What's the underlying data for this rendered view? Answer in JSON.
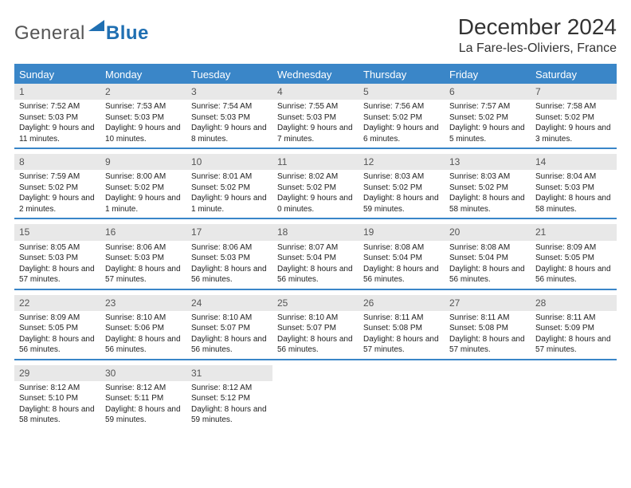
{
  "logo": {
    "general": "General",
    "blue": "Blue",
    "tri_color": "#1f6fb2"
  },
  "title": "December 2024",
  "location": "La Fare-les-Oliviers, France",
  "colors": {
    "header_bg": "#3a86c8",
    "daynum_bg": "#e8e8e8",
    "text": "#222222",
    "underline": "#3a86c8"
  },
  "typography": {
    "title_fontsize": 28,
    "location_fontsize": 16,
    "dow_fontsize": 13,
    "daynum_fontsize": 12,
    "body_fontsize": 10
  },
  "daysOfWeek": [
    "Sunday",
    "Monday",
    "Tuesday",
    "Wednesday",
    "Thursday",
    "Friday",
    "Saturday"
  ],
  "weeks": [
    [
      {
        "n": "1",
        "sunrise": "Sunrise: 7:52 AM",
        "sunset": "Sunset: 5:03 PM",
        "daylight": "Daylight: 9 hours and 11 minutes."
      },
      {
        "n": "2",
        "sunrise": "Sunrise: 7:53 AM",
        "sunset": "Sunset: 5:03 PM",
        "daylight": "Daylight: 9 hours and 10 minutes."
      },
      {
        "n": "3",
        "sunrise": "Sunrise: 7:54 AM",
        "sunset": "Sunset: 5:03 PM",
        "daylight": "Daylight: 9 hours and 8 minutes."
      },
      {
        "n": "4",
        "sunrise": "Sunrise: 7:55 AM",
        "sunset": "Sunset: 5:03 PM",
        "daylight": "Daylight: 9 hours and 7 minutes."
      },
      {
        "n": "5",
        "sunrise": "Sunrise: 7:56 AM",
        "sunset": "Sunset: 5:02 PM",
        "daylight": "Daylight: 9 hours and 6 minutes."
      },
      {
        "n": "6",
        "sunrise": "Sunrise: 7:57 AM",
        "sunset": "Sunset: 5:02 PM",
        "daylight": "Daylight: 9 hours and 5 minutes."
      },
      {
        "n": "7",
        "sunrise": "Sunrise: 7:58 AM",
        "sunset": "Sunset: 5:02 PM",
        "daylight": "Daylight: 9 hours and 3 minutes."
      }
    ],
    [
      {
        "n": "8",
        "sunrise": "Sunrise: 7:59 AM",
        "sunset": "Sunset: 5:02 PM",
        "daylight": "Daylight: 9 hours and 2 minutes."
      },
      {
        "n": "9",
        "sunrise": "Sunrise: 8:00 AM",
        "sunset": "Sunset: 5:02 PM",
        "daylight": "Daylight: 9 hours and 1 minute."
      },
      {
        "n": "10",
        "sunrise": "Sunrise: 8:01 AM",
        "sunset": "Sunset: 5:02 PM",
        "daylight": "Daylight: 9 hours and 1 minute."
      },
      {
        "n": "11",
        "sunrise": "Sunrise: 8:02 AM",
        "sunset": "Sunset: 5:02 PM",
        "daylight": "Daylight: 9 hours and 0 minutes."
      },
      {
        "n": "12",
        "sunrise": "Sunrise: 8:03 AM",
        "sunset": "Sunset: 5:02 PM",
        "daylight": "Daylight: 8 hours and 59 minutes."
      },
      {
        "n": "13",
        "sunrise": "Sunrise: 8:03 AM",
        "sunset": "Sunset: 5:02 PM",
        "daylight": "Daylight: 8 hours and 58 minutes."
      },
      {
        "n": "14",
        "sunrise": "Sunrise: 8:04 AM",
        "sunset": "Sunset: 5:03 PM",
        "daylight": "Daylight: 8 hours and 58 minutes."
      }
    ],
    [
      {
        "n": "15",
        "sunrise": "Sunrise: 8:05 AM",
        "sunset": "Sunset: 5:03 PM",
        "daylight": "Daylight: 8 hours and 57 minutes."
      },
      {
        "n": "16",
        "sunrise": "Sunrise: 8:06 AM",
        "sunset": "Sunset: 5:03 PM",
        "daylight": "Daylight: 8 hours and 57 minutes."
      },
      {
        "n": "17",
        "sunrise": "Sunrise: 8:06 AM",
        "sunset": "Sunset: 5:03 PM",
        "daylight": "Daylight: 8 hours and 56 minutes."
      },
      {
        "n": "18",
        "sunrise": "Sunrise: 8:07 AM",
        "sunset": "Sunset: 5:04 PM",
        "daylight": "Daylight: 8 hours and 56 minutes."
      },
      {
        "n": "19",
        "sunrise": "Sunrise: 8:08 AM",
        "sunset": "Sunset: 5:04 PM",
        "daylight": "Daylight: 8 hours and 56 minutes."
      },
      {
        "n": "20",
        "sunrise": "Sunrise: 8:08 AM",
        "sunset": "Sunset: 5:04 PM",
        "daylight": "Daylight: 8 hours and 56 minutes."
      },
      {
        "n": "21",
        "sunrise": "Sunrise: 8:09 AM",
        "sunset": "Sunset: 5:05 PM",
        "daylight": "Daylight: 8 hours and 56 minutes."
      }
    ],
    [
      {
        "n": "22",
        "sunrise": "Sunrise: 8:09 AM",
        "sunset": "Sunset: 5:05 PM",
        "daylight": "Daylight: 8 hours and 56 minutes."
      },
      {
        "n": "23",
        "sunrise": "Sunrise: 8:10 AM",
        "sunset": "Sunset: 5:06 PM",
        "daylight": "Daylight: 8 hours and 56 minutes."
      },
      {
        "n": "24",
        "sunrise": "Sunrise: 8:10 AM",
        "sunset": "Sunset: 5:07 PM",
        "daylight": "Daylight: 8 hours and 56 minutes."
      },
      {
        "n": "25",
        "sunrise": "Sunrise: 8:10 AM",
        "sunset": "Sunset: 5:07 PM",
        "daylight": "Daylight: 8 hours and 56 minutes."
      },
      {
        "n": "26",
        "sunrise": "Sunrise: 8:11 AM",
        "sunset": "Sunset: 5:08 PM",
        "daylight": "Daylight: 8 hours and 57 minutes."
      },
      {
        "n": "27",
        "sunrise": "Sunrise: 8:11 AM",
        "sunset": "Sunset: 5:08 PM",
        "daylight": "Daylight: 8 hours and 57 minutes."
      },
      {
        "n": "28",
        "sunrise": "Sunrise: 8:11 AM",
        "sunset": "Sunset: 5:09 PM",
        "daylight": "Daylight: 8 hours and 57 minutes."
      }
    ],
    [
      {
        "n": "29",
        "sunrise": "Sunrise: 8:12 AM",
        "sunset": "Sunset: 5:10 PM",
        "daylight": "Daylight: 8 hours and 58 minutes."
      },
      {
        "n": "30",
        "sunrise": "Sunrise: 8:12 AM",
        "sunset": "Sunset: 5:11 PM",
        "daylight": "Daylight: 8 hours and 59 minutes."
      },
      {
        "n": "31",
        "sunrise": "Sunrise: 8:12 AM",
        "sunset": "Sunset: 5:12 PM",
        "daylight": "Daylight: 8 hours and 59 minutes."
      },
      null,
      null,
      null,
      null
    ]
  ]
}
